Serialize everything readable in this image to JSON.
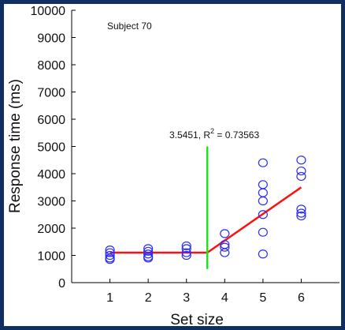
{
  "chart_data": {
    "type": "scatter",
    "title": "Subject 70",
    "xlabel": "Set size",
    "ylabel": "Response time (ms)",
    "xlim": [
      0,
      7
    ],
    "ylim": [
      0,
      10000
    ],
    "x_ticks": [
      "1",
      "2",
      "3",
      "4",
      "5",
      "6"
    ],
    "y_ticks": [
      "0",
      "1000",
      "2000",
      "3000",
      "4000",
      "5000",
      "6000",
      "7000",
      "8000",
      "9000",
      "10000"
    ],
    "grid": false,
    "annotation": {
      "text_main": "3.5451, R",
      "text_sup": "2",
      "text_tail": " = 0.73563",
      "x": 3.5451
    },
    "points": [
      {
        "x": 1,
        "y": 1200
      },
      {
        "x": 1,
        "y": 1100
      },
      {
        "x": 1,
        "y": 1000
      },
      {
        "x": 1,
        "y": 900
      },
      {
        "x": 1,
        "y": 850
      },
      {
        "x": 2,
        "y": 1250
      },
      {
        "x": 2,
        "y": 1150
      },
      {
        "x": 2,
        "y": 1050
      },
      {
        "x": 2,
        "y": 950
      },
      {
        "x": 2,
        "y": 900
      },
      {
        "x": 3,
        "y": 1350
      },
      {
        "x": 3,
        "y": 1250
      },
      {
        "x": 3,
        "y": 1100
      },
      {
        "x": 3,
        "y": 1000
      },
      {
        "x": 4,
        "y": 1800
      },
      {
        "x": 4,
        "y": 1400
      },
      {
        "x": 4,
        "y": 1300
      },
      {
        "x": 4,
        "y": 1100
      },
      {
        "x": 5,
        "y": 4400
      },
      {
        "x": 5,
        "y": 3600
      },
      {
        "x": 5,
        "y": 3300
      },
      {
        "x": 5,
        "y": 3000
      },
      {
        "x": 5,
        "y": 2500
      },
      {
        "x": 5,
        "y": 1850
      },
      {
        "x": 5,
        "y": 1050
      },
      {
        "x": 6,
        "y": 4500
      },
      {
        "x": 6,
        "y": 4100
      },
      {
        "x": 6,
        "y": 3900
      },
      {
        "x": 6,
        "y": 2700
      },
      {
        "x": 6,
        "y": 2550
      },
      {
        "x": 6,
        "y": 2450
      }
    ],
    "fit_line": [
      {
        "x": 1,
        "y": 1100
      },
      {
        "x": 3.5451,
        "y": 1100
      },
      {
        "x": 6,
        "y": 3500
      }
    ],
    "breakpoint_line": {
      "x": 3.5451,
      "y_from": 500,
      "y_to": 5000
    },
    "colors": {
      "points": "#2d2df2",
      "fit": "#ff1010",
      "breakpoint": "#22e022",
      "frame": "#0f2f62"
    }
  }
}
